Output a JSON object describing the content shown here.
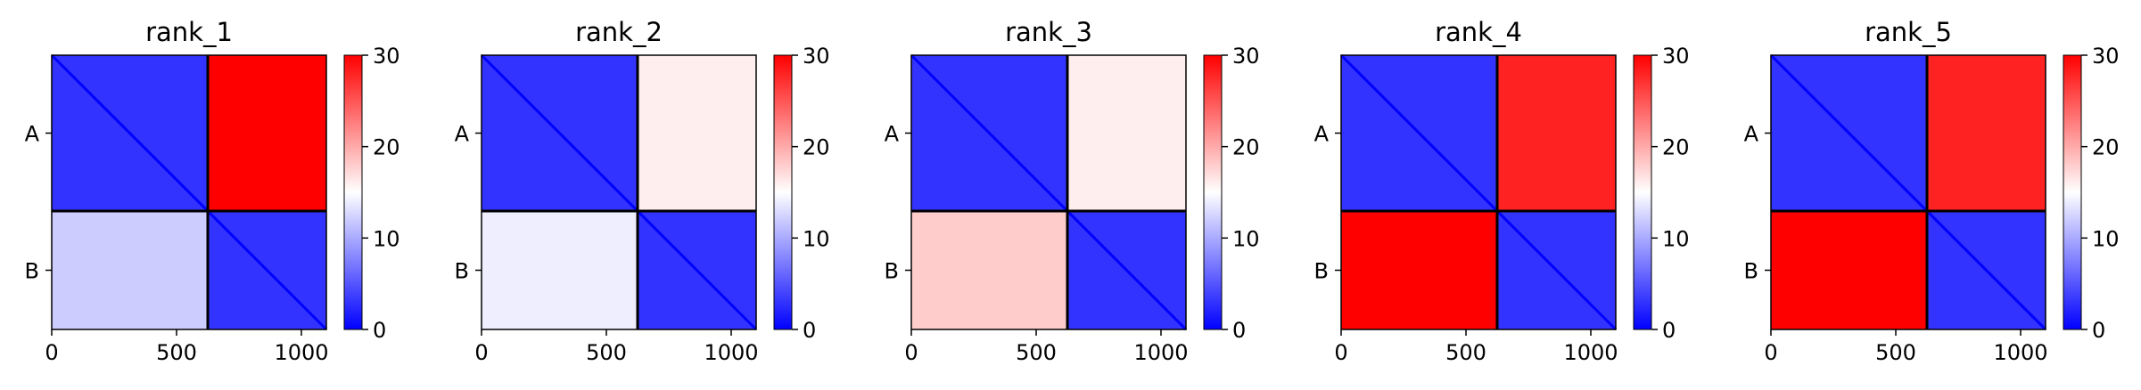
{
  "chart_data": [
    {
      "type": "heatmap",
      "title": "rank_1",
      "chain_labels": [
        "A",
        "B"
      ],
      "chain_boundary": 625,
      "n_residues": 1100,
      "xticks": [
        0,
        500,
        1000
      ],
      "xlim": [
        0,
        1100
      ],
      "colorbar": {
        "min": 0,
        "max": 30,
        "ticks": [
          0,
          10,
          20,
          30
        ],
        "colors": [
          "#0000ff",
          "#ffffff",
          "#ff0000"
        ]
      },
      "blocks": {
        "A_A": 3,
        "A_B": 30,
        "B_A": 12,
        "B_B": 3
      }
    },
    {
      "type": "heatmap",
      "title": "rank_2",
      "chain_labels": [
        "A",
        "B"
      ],
      "chain_boundary": 625,
      "n_residues": 1100,
      "xticks": [
        0,
        500,
        1000
      ],
      "xlim": [
        0,
        1100
      ],
      "colorbar": {
        "min": 0,
        "max": 30,
        "ticks": [
          0,
          10,
          20,
          30
        ],
        "colors": [
          "#0000ff",
          "#ffffff",
          "#ff0000"
        ]
      },
      "blocks": {
        "A_A": 3,
        "A_B": 16,
        "B_A": 14,
        "B_B": 3
      }
    },
    {
      "type": "heatmap",
      "title": "rank_3",
      "chain_labels": [
        "A",
        "B"
      ],
      "chain_boundary": 625,
      "n_residues": 1100,
      "xticks": [
        0,
        500,
        1000
      ],
      "xlim": [
        0,
        1100
      ],
      "colorbar": {
        "min": 0,
        "max": 30,
        "ticks": [
          0,
          10,
          20,
          30
        ],
        "colors": [
          "#0000ff",
          "#ffffff",
          "#ff0000"
        ]
      },
      "blocks": {
        "A_A": 3,
        "A_B": 16,
        "B_A": 18,
        "B_B": 3
      }
    },
    {
      "type": "heatmap",
      "title": "rank_4",
      "chain_labels": [
        "A",
        "B"
      ],
      "chain_boundary": 625,
      "n_residues": 1100,
      "xticks": [
        0,
        500,
        1000
      ],
      "xlim": [
        0,
        1100
      ],
      "colorbar": {
        "min": 0,
        "max": 30,
        "ticks": [
          0,
          10,
          20,
          30
        ],
        "colors": [
          "#0000ff",
          "#ffffff",
          "#ff0000"
        ]
      },
      "blocks": {
        "A_A": 3,
        "A_B": 28,
        "B_A": 30,
        "B_B": 3
      }
    },
    {
      "type": "heatmap",
      "title": "rank_5",
      "chain_labels": [
        "A",
        "B"
      ],
      "chain_boundary": 625,
      "n_residues": 1100,
      "xticks": [
        0,
        500,
        1000
      ],
      "xlim": [
        0,
        1100
      ],
      "colorbar": {
        "min": 0,
        "max": 30,
        "ticks": [
          0,
          10,
          20,
          30
        ],
        "colors": [
          "#0000ff",
          "#ffffff",
          "#ff0000"
        ]
      },
      "blocks": {
        "A_A": 3,
        "A_B": 28,
        "B_A": 30,
        "B_B": 3
      }
    }
  ]
}
